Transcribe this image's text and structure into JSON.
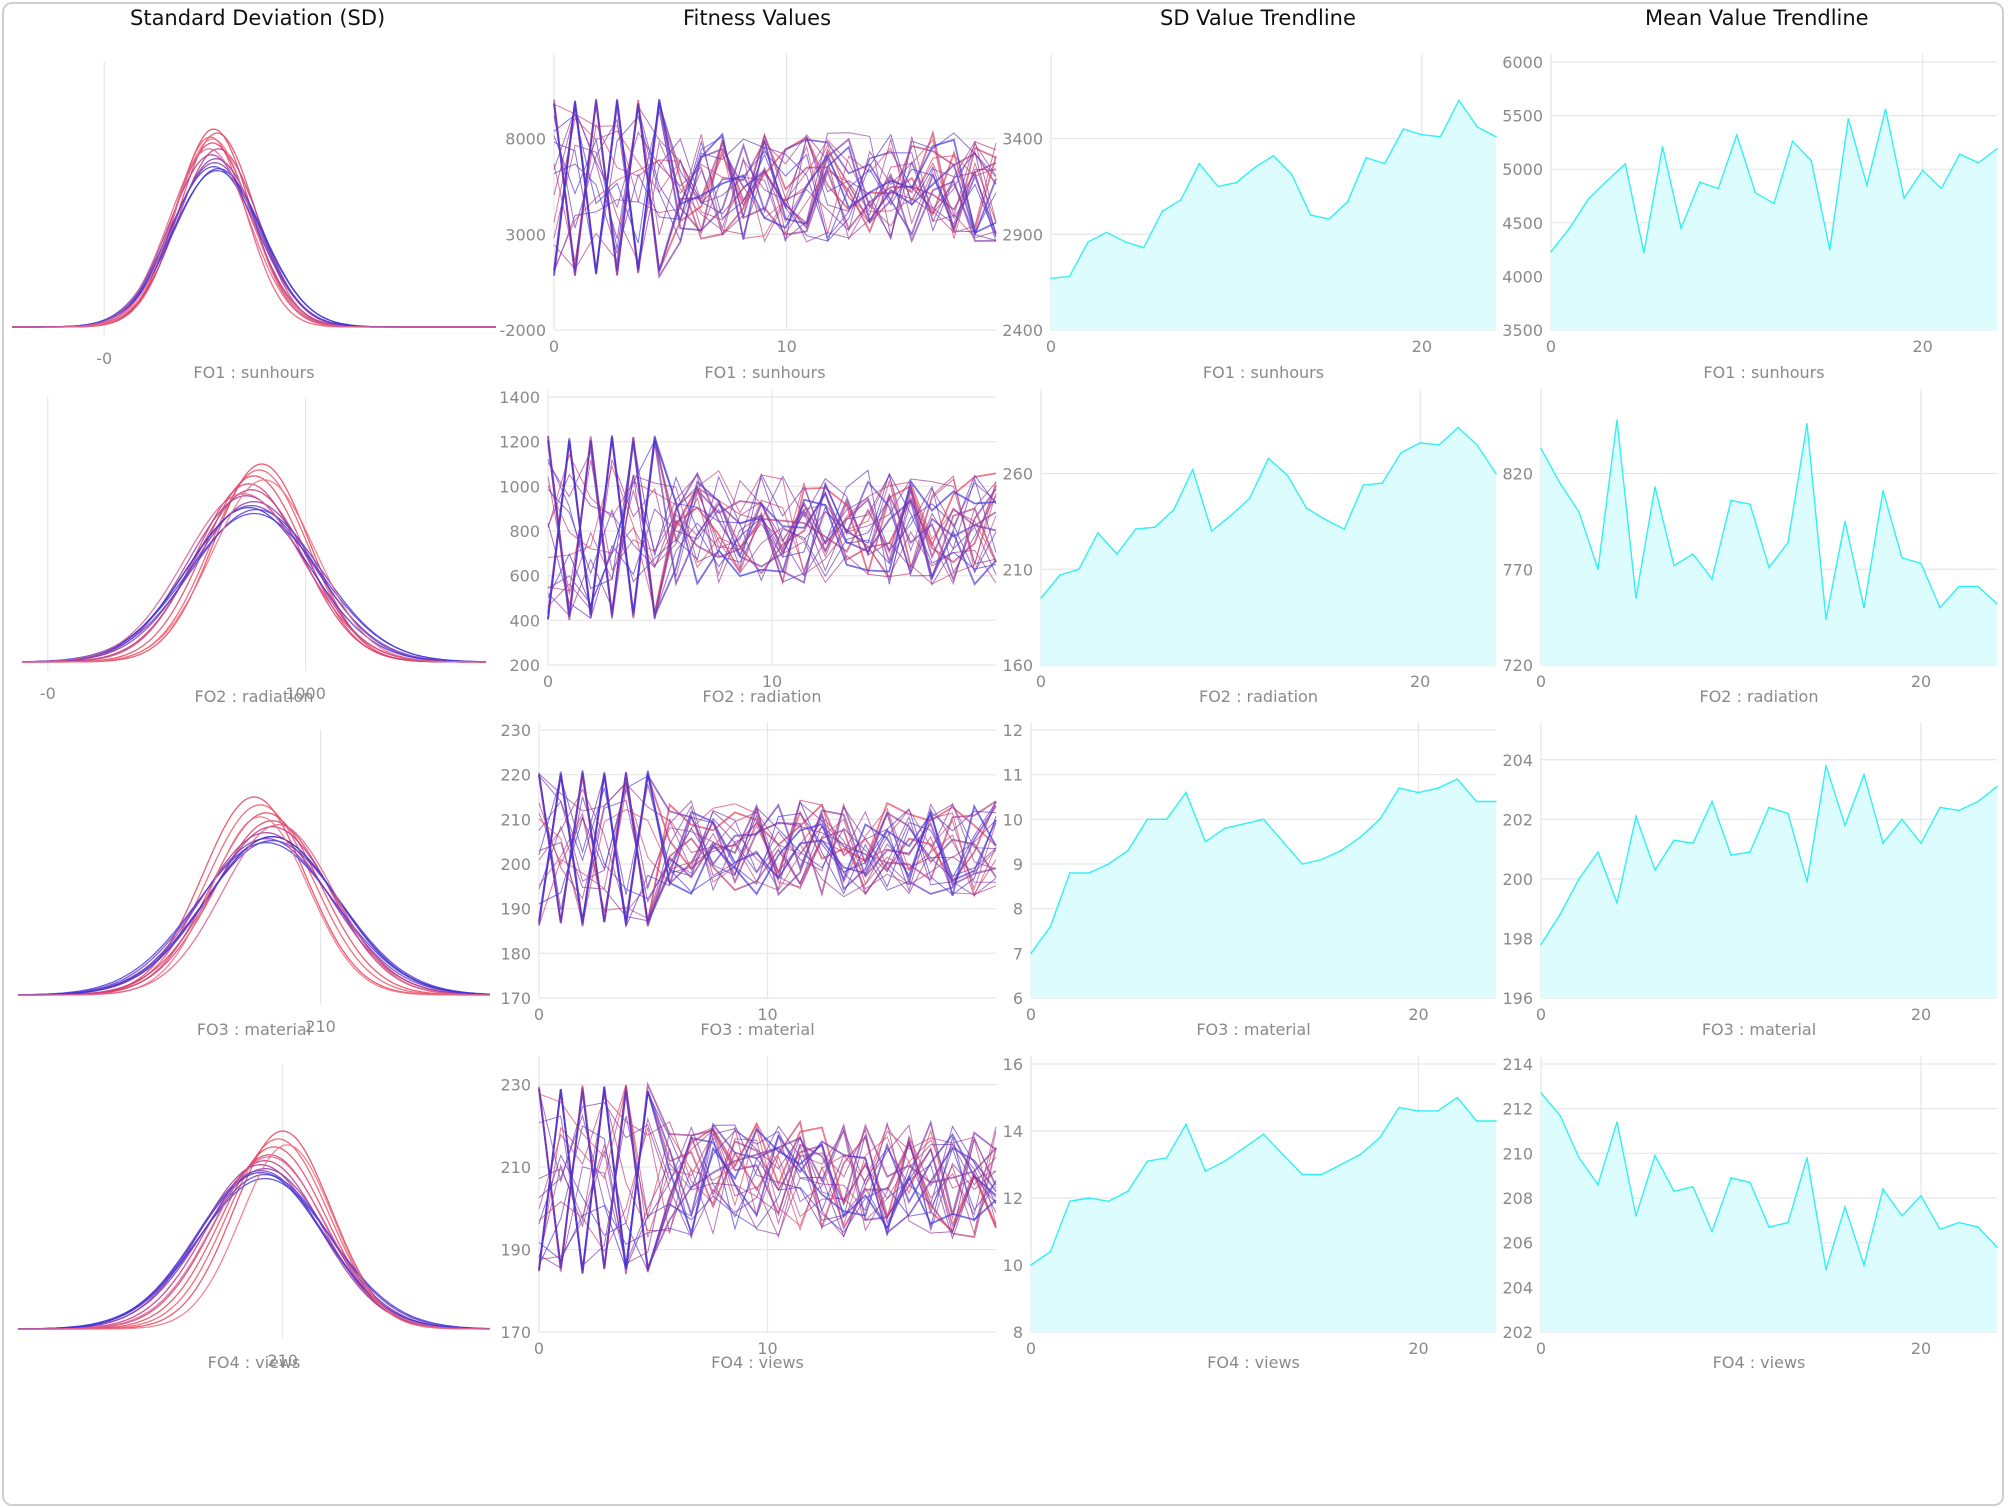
{
  "headers": {
    "sd": "Standard Deviation (SD)",
    "fitness": "Fitness Values",
    "sd_trend": "SD Value Trendline",
    "mean_trend": "Mean Value Trendline"
  },
  "colors": {
    "curve_red": "#e8405a",
    "curve_blue": "#4a3ce0",
    "trend_line": "#33f0f0",
    "trend_fill": "#dcfcfd",
    "grid": "#e6e6e6",
    "tick": "#8a8a8a"
  },
  "chart_data": [
    {
      "type": "line",
      "panel": "sd",
      "label": "FO1 : sunhours",
      "xticks": [
        {
          "v": 0,
          "t": "-0"
        }
      ],
      "xlim": [
        -8000,
        34000
      ],
      "curves": [
        {
          "mean": 9500,
          "sd": 3200,
          "color": "#e8405a",
          "peak": 1.0
        },
        {
          "mean": 9800,
          "sd": 3300,
          "color": "#e34560",
          "peak": 0.98
        },
        {
          "mean": 9200,
          "sd": 3100,
          "color": "#ee5568",
          "peak": 0.96
        },
        {
          "mean": 9400,
          "sd": 3400,
          "color": "#d8406a",
          "peak": 0.93
        },
        {
          "mean": 9900,
          "sd": 3500,
          "color": "#c03a80",
          "peak": 0.9
        },
        {
          "mean": 9300,
          "sd": 3600,
          "color": "#a83a95",
          "peak": 0.87
        },
        {
          "mean": 9700,
          "sd": 3700,
          "color": "#8a3aaa",
          "peak": 0.85
        },
        {
          "mean": 9600,
          "sd": 3750,
          "color": "#7040c0",
          "peak": 0.83
        },
        {
          "mean": 9500,
          "sd": 3800,
          "color": "#5a3ccc",
          "peak": 0.81
        },
        {
          "mean": 9800,
          "sd": 3900,
          "color": "#4a3ce0",
          "peak": 0.79
        },
        {
          "mean": 9900,
          "sd": 3850,
          "color": "#3a35d8",
          "peak": 0.8
        },
        {
          "mean": 9400,
          "sd": 3300,
          "color": "#f07080",
          "peak": 0.95
        },
        {
          "mean": 9100,
          "sd": 3450,
          "color": "#e06090",
          "peak": 0.9
        }
      ]
    },
    {
      "type": "line",
      "panel": "fitness",
      "label": "FO1 : sunhours",
      "xticks": [
        0,
        10
      ],
      "yticks": [
        -2000,
        3000,
        8000
      ],
      "xlim": [
        0,
        19
      ],
      "ylim": [
        -2000,
        12000
      ],
      "seed": 11,
      "lo": 800,
      "hi": 10100
    },
    {
      "type": "area",
      "panel": "sd_trend",
      "label": "FO1 : sunhours",
      "xticks": [
        0,
        20
      ],
      "yticks": [
        2400,
        2900,
        3400
      ],
      "xlim": [
        0,
        24
      ],
      "ylim": [
        2400,
        3800
      ],
      "values": [
        2670,
        2680,
        2860,
        2910,
        2860,
        2830,
        3020,
        3080,
        3270,
        3150,
        3170,
        3250,
        3310,
        3210,
        3000,
        2980,
        3070,
        3300,
        3270,
        3450,
        3420,
        3410,
        3600,
        3460,
        3410
      ]
    },
    {
      "type": "area",
      "panel": "mean_trend",
      "label": "FO1 : sunhours",
      "xticks": [
        0,
        20
      ],
      "yticks": [
        3500,
        4000,
        4500,
        5000,
        5500,
        6000
      ],
      "xlim": [
        0,
        24
      ],
      "ylim": [
        3500,
        6000
      ],
      "values": [
        4230,
        4450,
        4720,
        4890,
        5050,
        4220,
        5210,
        4450,
        4880,
        4820,
        5320,
        4780,
        4680,
        5260,
        5080,
        4250,
        5470,
        4850,
        5560,
        4730,
        4990,
        4820,
        5140,
        5060,
        5190
      ]
    },
    {
      "type": "line",
      "panel": "sd",
      "label": "FO2 : radiation",
      "xticks": [
        {
          "v": 0,
          "t": "-0"
        },
        {
          "v": 1000,
          "t": "1000"
        }
      ],
      "xlim": [
        -100,
        1700
      ],
      "curves": [
        {
          "mean": 830,
          "sd": 185,
          "color": "#e8405a",
          "peak": 1.0
        },
        {
          "mean": 820,
          "sd": 190,
          "color": "#ee5568",
          "peak": 0.97
        },
        {
          "mean": 800,
          "sd": 195,
          "color": "#e34560",
          "peak": 0.94
        },
        {
          "mean": 780,
          "sd": 205,
          "color": "#d8406a",
          "peak": 0.9
        },
        {
          "mean": 790,
          "sd": 215,
          "color": "#c03a80",
          "peak": 0.87
        },
        {
          "mean": 770,
          "sd": 225,
          "color": "#a83a95",
          "peak": 0.84
        },
        {
          "mean": 800,
          "sd": 235,
          "color": "#8a3aaa",
          "peak": 0.81
        },
        {
          "mean": 790,
          "sd": 245,
          "color": "#7040c0",
          "peak": 0.79
        },
        {
          "mean": 810,
          "sd": 250,
          "color": "#5a3ccc",
          "peak": 0.77
        },
        {
          "mean": 800,
          "sd": 255,
          "color": "#4a3ce0",
          "peak": 0.75
        },
        {
          "mean": 780,
          "sd": 240,
          "color": "#3a35d8",
          "peak": 0.78
        },
        {
          "mean": 840,
          "sd": 200,
          "color": "#f07080",
          "peak": 0.92
        },
        {
          "mean": 760,
          "sd": 230,
          "color": "#e06090",
          "peak": 0.85
        }
      ]
    },
    {
      "type": "line",
      "panel": "fitness",
      "label": "FO2 : radiation",
      "xticks": [
        0,
        10
      ],
      "yticks": [
        200,
        400,
        600,
        800,
        1000,
        1200,
        1400
      ],
      "xlim": [
        0,
        20
      ],
      "ylim": [
        200,
        1400
      ],
      "seed": 23,
      "lo": 400,
      "hi": 1230
    },
    {
      "type": "area",
      "panel": "sd_trend",
      "label": "FO2 : radiation",
      "xticks": [
        0,
        20
      ],
      "yticks": [
        160,
        210,
        260
      ],
      "xlim": [
        0,
        24
      ],
      "ylim": [
        160,
        300
      ],
      "values": [
        195,
        207,
        210,
        229,
        218,
        231,
        232,
        241,
        262,
        230,
        238,
        247,
        268,
        259,
        242,
        236,
        231,
        254,
        255,
        271,
        276,
        275,
        284,
        275,
        260
      ]
    },
    {
      "type": "area",
      "panel": "mean_trend",
      "label": "FO2 : radiation",
      "xticks": [
        0,
        20
      ],
      "yticks": [
        720,
        770,
        820
      ],
      "xlim": [
        0,
        24
      ],
      "ylim": [
        720,
        860
      ],
      "values": [
        833,
        815,
        800,
        770,
        848,
        755,
        813,
        772,
        778,
        765,
        806,
        804,
        771,
        784,
        846,
        744,
        795,
        750,
        811,
        776,
        773,
        750,
        761,
        761,
        752
      ]
    },
    {
      "type": "line",
      "panel": "sd",
      "label": "FO3 : material",
      "xticks": [
        {
          "v": 210,
          "t": "210"
        }
      ],
      "xlim": [
        160,
        238
      ],
      "curves": [
        {
          "mean": 199,
          "sd": 8.5,
          "color": "#e8405a",
          "peak": 1.0
        },
        {
          "mean": 200,
          "sd": 8.8,
          "color": "#ee5568",
          "peak": 0.96
        },
        {
          "mean": 201,
          "sd": 9.0,
          "color": "#e34560",
          "peak": 0.92
        },
        {
          "mean": 202,
          "sd": 9.5,
          "color": "#d8406a",
          "peak": 0.88
        },
        {
          "mean": 202,
          "sd": 10.0,
          "color": "#c03a80",
          "peak": 0.85
        },
        {
          "mean": 201,
          "sd": 10.5,
          "color": "#a83a95",
          "peak": 0.82
        },
        {
          "mean": 202,
          "sd": 10.8,
          "color": "#8a3aaa",
          "peak": 0.8
        },
        {
          "mean": 201,
          "sd": 11.0,
          "color": "#7040c0",
          "peak": 0.79
        },
        {
          "mean": 202,
          "sd": 11.2,
          "color": "#5a3ccc",
          "peak": 0.78
        },
        {
          "mean": 201,
          "sd": 11.4,
          "color": "#4a3ce0",
          "peak": 0.77
        },
        {
          "mean": 202,
          "sd": 10.9,
          "color": "#3a35d8",
          "peak": 0.8
        },
        {
          "mean": 200,
          "sd": 8.0,
          "color": "#f07080",
          "peak": 0.9
        },
        {
          "mean": 203,
          "sd": 9.2,
          "color": "#e06090",
          "peak": 0.86
        }
      ]
    },
    {
      "type": "line",
      "panel": "fitness",
      "label": "FO3 : material",
      "xticks": [
        0,
        10
      ],
      "yticks": [
        170,
        180,
        190,
        200,
        210,
        220,
        230
      ],
      "xlim": [
        0,
        20
      ],
      "ylim": [
        170,
        230
      ],
      "seed": 37,
      "lo": 186,
      "hi": 221
    },
    {
      "type": "area",
      "panel": "sd_trend",
      "label": "FO3 : material",
      "xticks": [
        0,
        20
      ],
      "yticks": [
        6,
        7,
        8,
        9,
        10,
        11,
        12
      ],
      "xlim": [
        0,
        24
      ],
      "ylim": [
        6,
        12
      ],
      "values": [
        7.0,
        7.6,
        8.8,
        8.8,
        9.0,
        9.3,
        10.0,
        10.0,
        10.6,
        9.5,
        9.8,
        9.9,
        10.0,
        9.5,
        9.0,
        9.1,
        9.3,
        9.6,
        10.0,
        10.7,
        10.6,
        10.7,
        10.9,
        10.4,
        10.4
      ]
    },
    {
      "type": "area",
      "panel": "mean_trend",
      "label": "FO3 : material",
      "xticks": [
        0,
        20
      ],
      "yticks": [
        196,
        198,
        200,
        202,
        204
      ],
      "xlim": [
        0,
        24
      ],
      "ylim": [
        196,
        205
      ],
      "values": [
        197.8,
        198.8,
        200.0,
        200.9,
        199.2,
        202.1,
        200.3,
        201.3,
        201.2,
        202.6,
        200.8,
        200.9,
        202.4,
        202.2,
        199.9,
        203.8,
        201.8,
        203.5,
        201.2,
        202.0,
        201.2,
        202.4,
        202.3,
        202.6,
        203.1
      ]
    },
    {
      "type": "line",
      "panel": "sd",
      "label": "FO4 : views",
      "xticks": [
        {
          "v": 210,
          "t": "210"
        }
      ],
      "xlim": [
        150,
        257
      ],
      "curves": [
        {
          "mean": 210,
          "sd": 11,
          "color": "#e8405a",
          "peak": 1.0
        },
        {
          "mean": 209,
          "sd": 11.5,
          "color": "#ee5568",
          "peak": 0.96
        },
        {
          "mean": 208,
          "sd": 12,
          "color": "#e34560",
          "peak": 0.92
        },
        {
          "mean": 207,
          "sd": 12.5,
          "color": "#d8406a",
          "peak": 0.88
        },
        {
          "mean": 206,
          "sd": 13,
          "color": "#c03a80",
          "peak": 0.85
        },
        {
          "mean": 205,
          "sd": 13.5,
          "color": "#a83a95",
          "peak": 0.83
        },
        {
          "mean": 206,
          "sd": 14,
          "color": "#8a3aaa",
          "peak": 0.81
        },
        {
          "mean": 205,
          "sd": 14.3,
          "color": "#7040c0",
          "peak": 0.8
        },
        {
          "mean": 206,
          "sd": 14.6,
          "color": "#5a3ccc",
          "peak": 0.78
        },
        {
          "mean": 206,
          "sd": 15,
          "color": "#4a3ce0",
          "peak": 0.76
        },
        {
          "mean": 205,
          "sd": 14.2,
          "color": "#3a35d8",
          "peak": 0.79
        },
        {
          "mean": 211,
          "sd": 10.5,
          "color": "#f07080",
          "peak": 0.93
        },
        {
          "mean": 207,
          "sd": 12.8,
          "color": "#e06090",
          "peak": 0.87
        }
      ]
    },
    {
      "type": "line",
      "panel": "fitness",
      "label": "FO4 : views",
      "xticks": [
        0,
        10
      ],
      "yticks": [
        170,
        190,
        210,
        230
      ],
      "xlim": [
        0,
        20
      ],
      "ylim": [
        170,
        235
      ],
      "seed": 51,
      "lo": 184,
      "hi": 230
    },
    {
      "type": "area",
      "panel": "sd_trend",
      "label": "FO4 : views",
      "xticks": [
        0,
        20
      ],
      "yticks": [
        8,
        10,
        12,
        14,
        16
      ],
      "xlim": [
        0,
        24
      ],
      "ylim": [
        8,
        16
      ],
      "values": [
        10.0,
        10.4,
        11.9,
        12.0,
        11.9,
        12.2,
        13.1,
        13.2,
        14.2,
        12.8,
        13.1,
        13.5,
        13.9,
        13.3,
        12.7,
        12.7,
        13.0,
        13.3,
        13.8,
        14.7,
        14.6,
        14.6,
        15.0,
        14.3,
        14.3
      ]
    },
    {
      "type": "area",
      "panel": "mean_trend",
      "label": "FO4 : views",
      "xticks": [
        0,
        20
      ],
      "yticks": [
        202,
        204,
        206,
        208,
        210,
        212,
        214
      ],
      "xlim": [
        0,
        24
      ],
      "ylim": [
        202,
        214
      ],
      "values": [
        212.7,
        211.7,
        209.8,
        208.6,
        211.4,
        207.2,
        209.9,
        208.3,
        208.5,
        206.5,
        208.9,
        208.7,
        206.7,
        206.9,
        209.8,
        204.8,
        207.6,
        205.0,
        208.4,
        207.2,
        208.1,
        206.6,
        206.9,
        206.7,
        205.8
      ]
    }
  ]
}
